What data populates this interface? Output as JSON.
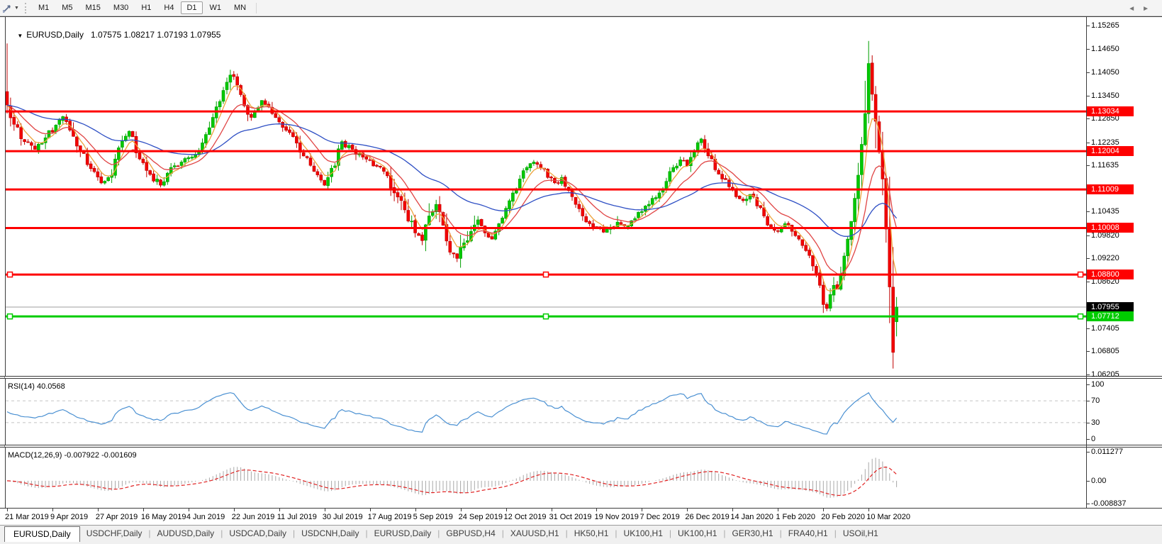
{
  "toolbar": {
    "timeframes": [
      "M1",
      "M5",
      "M15",
      "M30",
      "H1",
      "H4",
      "D1",
      "W1",
      "MN"
    ],
    "active_timeframe": "D1"
  },
  "chart": {
    "title": "EURUSD,Daily",
    "ohlc": "1.07575 1.08217 1.07193 1.07955",
    "scale_labels": [
      "1.15265",
      "1.14650",
      "1.14050",
      "1.13450",
      "1.12850",
      "1.12235",
      "1.11635",
      "1.10435",
      "1.09820",
      "1.09220",
      "1.08620",
      "1.07405",
      "1.06805",
      "1.06205"
    ],
    "price_tags": [
      {
        "text": "1.13034",
        "bg": "#fe0000",
        "fg": "#ffffff"
      },
      {
        "text": "1.12004",
        "bg": "#fe0000",
        "fg": "#ffffff"
      },
      {
        "text": "1.11009",
        "bg": "#fe0000",
        "fg": "#ffffff"
      },
      {
        "text": "1.10008",
        "bg": "#fe0000",
        "fg": "#ffffff"
      },
      {
        "text": "1.08800",
        "bg": "#fe0000",
        "fg": "#ffffff"
      },
      {
        "text": "1.07955",
        "bg": "#000000",
        "fg": "#ffffff"
      },
      {
        "text": "1.07712",
        "bg": "#00cc00",
        "fg": "#ffffff"
      }
    ]
  },
  "rsi": {
    "name": "RSI(14)",
    "value": "40.0568",
    "scale_labels": [
      "100",
      "70",
      "30",
      "0"
    ],
    "levels": [
      70,
      30
    ],
    "color": "#4a90d2"
  },
  "macd": {
    "name": "MACD(12,26,9)",
    "values": "-0.007922 -0.001609",
    "scale_labels": [
      "0.011277",
      "0.00",
      "-0.008837"
    ],
    "scale_max": 0.011277,
    "scale_min": -0.008837,
    "hist_color": "#a8a8a8",
    "signal_color": "#e02020"
  },
  "tabs": {
    "items": [
      {
        "label": "EURUSD,Daily",
        "active": true
      },
      {
        "label": "USDCHF,Daily",
        "active": false
      },
      {
        "label": "AUDUSD,Daily",
        "active": false
      },
      {
        "label": "USDCAD,Daily",
        "active": false
      },
      {
        "label": "USDCNH,Daily",
        "active": false
      },
      {
        "label": "EURUSD,Daily",
        "active": false
      },
      {
        "label": "GBPUSD,H4",
        "active": false
      },
      {
        "label": "XAUUSD,H1",
        "active": false
      },
      {
        "label": "HK50,H1",
        "active": false
      },
      {
        "label": "UK100,H1",
        "active": false
      },
      {
        "label": "UK100,H1",
        "active": false
      },
      {
        "label": "GER30,H1",
        "active": false
      },
      {
        "label": "FRA40,H1",
        "active": false
      },
      {
        "label": "USOil,H1",
        "active": false
      }
    ]
  },
  "chart_data": {
    "type": "candlestick",
    "symbol": "EURUSD",
    "timeframe": "Daily",
    "candle_count": 256,
    "candles_per_xlabel": 13,
    "x_labels": [
      "21 Mar 2019",
      "9 Apr 2019",
      "27 Apr 2019",
      "16 May 2019",
      "4 Jun 2019",
      "22 Jun 2019",
      "11 Jul 2019",
      "30 Jul 2019",
      "17 Aug 2019",
      "5 Sep 2019",
      "24 Sep 2019",
      "12 Oct 2019",
      "31 Oct 2019",
      "19 Nov 2019",
      "7 Dec 2019",
      "26 Dec 2019",
      "14 Jan 2020",
      "1 Feb 2020",
      "20 Feb 2020",
      "10 Mar 2020"
    ],
    "y_range": [
      1.06205,
      1.15265
    ],
    "price_anchors": [
      [
        0,
        1.132
      ],
      [
        2,
        1.127
      ],
      [
        5,
        1.1225
      ],
      [
        8,
        1.1205
      ],
      [
        11,
        1.1235
      ],
      [
        14,
        1.1268
      ],
      [
        16,
        1.129
      ],
      [
        18,
        1.1255
      ],
      [
        21,
        1.12
      ],
      [
        24,
        1.1155
      ],
      [
        27,
        1.1118
      ],
      [
        30,
        1.1138
      ],
      [
        33,
        1.1228
      ],
      [
        35,
        1.1252
      ],
      [
        38,
        1.118
      ],
      [
        41,
        1.114
      ],
      [
        44,
        1.1112
      ],
      [
        47,
        1.1158
      ],
      [
        50,
        1.1172
      ],
      [
        53,
        1.1185
      ],
      [
        56,
        1.1222
      ],
      [
        59,
        1.1288
      ],
      [
        62,
        1.1358
      ],
      [
        64,
        1.1398
      ],
      [
        66,
        1.1372
      ],
      [
        68,
        1.1318
      ],
      [
        70,
        1.1288
      ],
      [
        73,
        1.1332
      ],
      [
        76,
        1.1298
      ],
      [
        79,
        1.1262
      ],
      [
        82,
        1.1238
      ],
      [
        85,
        1.1188
      ],
      [
        88,
        1.1148
      ],
      [
        91,
        1.1112
      ],
      [
        94,
        1.1162
      ],
      [
        96,
        1.1225
      ],
      [
        99,
        1.1205
      ],
      [
        102,
        1.1185
      ],
      [
        105,
        1.1162
      ],
      [
        108,
        1.1148
      ],
      [
        111,
        1.1092
      ],
      [
        114,
        1.1048
      ],
      [
        117,
        1.0988
      ],
      [
        119,
        1.0968
      ],
      [
        121,
        1.1032
      ],
      [
        123,
        1.1062
      ],
      [
        125,
        1.1008
      ],
      [
        127,
        1.0938
      ],
      [
        129,
        1.0922
      ],
      [
        131,
        1.0962
      ],
      [
        133,
        1.0992
      ],
      [
        135,
        1.1022
      ],
      [
        137,
        1.0988
      ],
      [
        139,
        1.0972
      ],
      [
        141,
        1.1012
      ],
      [
        143,
        1.1052
      ],
      [
        145,
        1.1092
      ],
      [
        147,
        1.1128
      ],
      [
        149,
        1.1158
      ],
      [
        151,
        1.1172
      ],
      [
        153,
        1.1158
      ],
      [
        155,
        1.1132
      ],
      [
        157,
        1.1118
      ],
      [
        159,
        1.1132
      ],
      [
        161,
        1.1098
      ],
      [
        163,
        1.1062
      ],
      [
        165,
        1.1032
      ],
      [
        167,
        1.1012
      ],
      [
        169,
        1.1002
      ],
      [
        171,
        1.099
      ],
      [
        173,
        1.1003
      ],
      [
        175,
        1.1016
      ],
      [
        177,
        1.1006
      ],
      [
        179,
        1.102
      ],
      [
        181,
        1.1042
      ],
      [
        183,
        1.1058
      ],
      [
        185,
        1.1078
      ],
      [
        187,
        1.1092
      ],
      [
        189,
        1.1122
      ],
      [
        191,
        1.1158
      ],
      [
        193,
        1.1178
      ],
      [
        195,
        1.1162
      ],
      [
        197,
        1.1198
      ],
      [
        199,
        1.1232
      ],
      [
        201,
        1.1188
      ],
      [
        203,
        1.1152
      ],
      [
        205,
        1.1128
      ],
      [
        207,
        1.1108
      ],
      [
        209,
        1.1082
      ],
      [
        211,
        1.1072
      ],
      [
        213,
        1.1088
      ],
      [
        215,
        1.1058
      ],
      [
        217,
        1.1032
      ],
      [
        219,
        1.1002
      ],
      [
        221,
        1.0992
      ],
      [
        223,
        1.1012
      ],
      [
        225,
        1.0992
      ],
      [
        227,
        1.0972
      ],
      [
        229,
        1.0942
      ],
      [
        231,
        1.0902
      ],
      [
        233,
        1.0852
      ],
      [
        234,
        1.0802
      ],
      [
        235,
        1.0792
      ],
      [
        236,
        1.0828
      ],
      [
        237,
        1.0852
      ],
      [
        238,
        1.0842
      ],
      [
        239,
        1.0878
      ],
      [
        240,
        1.0928
      ],
      [
        241,
        1.0972
      ],
      [
        242,
        1.1018
      ],
      [
        243,
        1.1078
      ],
      [
        244,
        1.1138
      ],
      [
        245,
        1.1218
      ],
      [
        246,
        1.1298
      ],
      [
        247,
        1.1428
      ],
      [
        248,
        1.1348
      ],
      [
        249,
        1.1278
      ],
      [
        250,
        1.1198
      ],
      [
        251,
        1.1128
      ],
      [
        252,
        1.0998
      ],
      [
        253,
        1.0848
      ],
      [
        254,
        1.0678
      ],
      [
        255,
        1.0796
      ]
    ],
    "first_candle": {
      "open": 1.1355,
      "high": 1.148,
      "low": 1.1298,
      "close": 1.132
    },
    "spike_high": {
      "index": 247,
      "price": 1.14863
    },
    "crash_low": {
      "index": 254,
      "price": 1.0636
    },
    "last_candle": {
      "open": 1.07575,
      "high": 1.08217,
      "low": 1.07193,
      "close": 1.07955
    },
    "horizontal_lines": [
      {
        "price": 1.13034,
        "color": "#fe0000",
        "selected": false
      },
      {
        "price": 1.12004,
        "color": "#fe0000",
        "selected": false
      },
      {
        "price": 1.11009,
        "color": "#fe0000",
        "selected": false
      },
      {
        "price": 1.10008,
        "color": "#fe0000",
        "selected": false
      },
      {
        "price": 1.088,
        "color": "#fe0000",
        "selected": true
      }
    ],
    "support_line": {
      "price": 1.07712,
      "color": "#00cc00",
      "selected": true
    },
    "bid_price": 1.07955,
    "bid_line_color": "#b9b9b9",
    "candle_up_color": "#00c800",
    "candle_up_stroke": "#009e00",
    "candle_down_color": "#f20000",
    "candle_down_stroke": "#c00000",
    "moving_averages": [
      {
        "name": "fast",
        "period": 5,
        "color": "#eda33c"
      },
      {
        "name": "medium",
        "period": 13,
        "color": "#e04545"
      },
      {
        "name": "slow",
        "period": 45,
        "color": "#2e4fc4"
      }
    ]
  }
}
